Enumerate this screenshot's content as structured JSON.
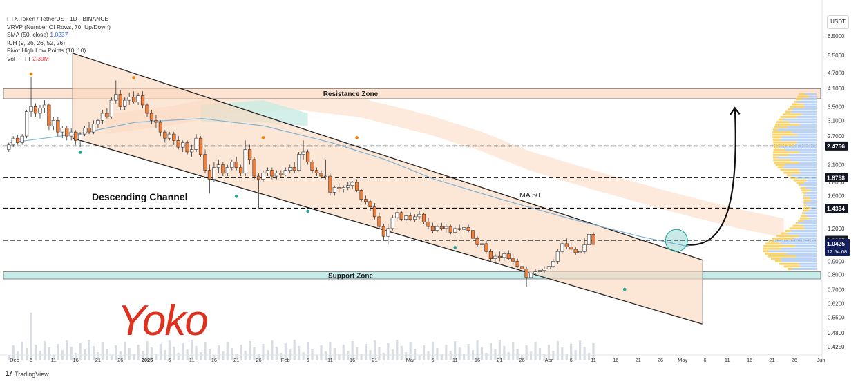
{
  "header": {
    "title": "FTX Token / TetherUS · 1D · BINANCE",
    "indicators": [
      {
        "label": "VRVP (Number Of Rows, 70, Up/Down)",
        "value": ""
      },
      {
        "label": "SMA (50, close)",
        "value": "1.0237",
        "value_color": "blue"
      },
      {
        "label": "ICH (9, 26, 26, 52, 26)",
        "value": ""
      },
      {
        "label": "Pivot High Low Points (10, 10)",
        "value": ""
      },
      {
        "label": "Vol · FTT",
        "value": "2.39M",
        "value_color": "red"
      }
    ],
    "currency": "USDT"
  },
  "footer": {
    "brand": "TradingView",
    "logo": "17"
  },
  "colors": {
    "bull": "#26a69a",
    "bear": "#ef5350",
    "candle_up": "#ffffff",
    "candle_down": "#f07f3c",
    "channel_fill": "#fbd9c0",
    "cloud": "#fde3d1",
    "cloud_green": "#c7ece3",
    "ma50": "#7fb3d5",
    "support_fill": "#c6ebe8",
    "resistance_fill": "#fde3d1",
    "signature": "#e0301e"
  },
  "chart_data": {
    "type": "candlestick",
    "symbol": "FTT/USDT",
    "timeframe": "1D",
    "exchange": "BINANCE",
    "y_scale": "log",
    "ylim": [
      0.4,
      8.0
    ],
    "y_ticks": [
      "7.3000",
      "6.5000",
      "5.5000",
      "4.7000",
      "4.1000",
      "3.5000",
      "3.1000",
      "2.7000",
      "2.4756",
      "2.1000",
      "1.8758",
      "1.8000",
      "1.6000",
      "1.4334",
      "1.2000",
      "1.0815",
      "1.0425",
      "0.9000",
      "0.8000",
      "0.7000",
      "0.6200",
      "0.5500",
      "0.4800",
      "0.4250"
    ],
    "x_ticks": [
      "Dec",
      "6",
      "11",
      "16",
      "21",
      "26",
      "2025",
      "6",
      "11",
      "16",
      "21",
      "26",
      "Feb",
      "6",
      "11",
      "16",
      "21",
      "Mar",
      "6",
      "11",
      "16",
      "21",
      "26",
      "Apr",
      "6",
      "11",
      "16",
      "21",
      "26",
      "May",
      "6",
      "11",
      "16",
      "21",
      "26",
      "Jun"
    ],
    "x_ticks_bold": [
      "2025"
    ],
    "horizontal_levels": [
      {
        "value": 2.4756,
        "label": "2.4756"
      },
      {
        "value": 1.8758,
        "label": "1.8758"
      },
      {
        "value": 1.4334,
        "label": "1.4334"
      },
      {
        "value": 1.0815,
        "label": "1.0815"
      }
    ],
    "current_price": {
      "value": "1.0425",
      "countdown": "12:54:08"
    },
    "zones": [
      {
        "name": "Resistance Zone",
        "low": 3.75,
        "high": 4.1
      },
      {
        "name": "Support Zone",
        "low": 0.77,
        "high": 0.82
      }
    ],
    "channel": {
      "name": "Descending Channel",
      "upper": {
        "from": {
          "x": "Dec 1",
          "y": 5.6
        },
        "to": {
          "x": "May 2",
          "y": 0.91
        }
      },
      "lower": {
        "from": {
          "x": "Dec 1",
          "y": 2.72
        },
        "to": {
          "x": "May 2",
          "y": 0.5
        }
      }
    },
    "annotations": [
      {
        "text": "Descending Channel"
      },
      {
        "text": "MA 50"
      },
      {
        "text": "Yoko",
        "kind": "signature"
      }
    ],
    "forecast_arrow": {
      "from": {
        "x": "May 1",
        "y": 1.04
      },
      "to": {
        "x": "May 13",
        "y": 3.5
      }
    },
    "pivot_highs": [
      {
        "x": "Dec 6",
        "y": 4.55
      },
      {
        "x": "Dec 29",
        "y": 4.4
      },
      {
        "x": "Jan 27",
        "y": 2.6
      },
      {
        "x": "Feb 17",
        "y": 2.6
      }
    ],
    "pivot_lows": [
      {
        "x": "Dec 17",
        "y": 2.4
      },
      {
        "x": "Jan 21",
        "y": 1.63
      },
      {
        "x": "Feb 6",
        "y": 1.43
      },
      {
        "x": "Mar 11",
        "y": 1.04
      },
      {
        "x": "Apr 18",
        "y": 0.72
      }
    ],
    "candles": [
      [
        2.4,
        2.55,
        2.35,
        2.5
      ],
      [
        2.5,
        2.7,
        2.45,
        2.65
      ],
      [
        2.65,
        2.72,
        2.5,
        2.55
      ],
      [
        2.55,
        2.75,
        2.5,
        2.7
      ],
      [
        2.7,
        3.4,
        2.65,
        3.35
      ],
      [
        3.35,
        4.55,
        3.2,
        3.5
      ],
      [
        3.5,
        3.6,
        3.2,
        3.3
      ],
      [
        3.3,
        3.55,
        3.15,
        3.45
      ],
      [
        3.45,
        3.7,
        3.3,
        3.55
      ],
      [
        3.55,
        3.6,
        2.85,
        2.95
      ],
      [
        2.95,
        3.2,
        2.85,
        3.1
      ],
      [
        3.1,
        3.2,
        2.7,
        2.8
      ],
      [
        2.8,
        2.95,
        2.65,
        2.9
      ],
      [
        2.9,
        2.95,
        2.6,
        2.7
      ],
      [
        2.7,
        2.9,
        2.6,
        2.8
      ],
      [
        2.8,
        2.85,
        2.5,
        2.6
      ],
      [
        2.6,
        2.8,
        2.45,
        2.75
      ],
      [
        2.75,
        2.95,
        2.7,
        2.9
      ],
      [
        2.9,
        3.05,
        2.75,
        2.8
      ],
      [
        2.8,
        3.1,
        2.75,
        3.0
      ],
      [
        3.0,
        3.15,
        2.9,
        3.1
      ],
      [
        3.1,
        3.4,
        3.0,
        3.3
      ],
      [
        3.3,
        3.45,
        3.15,
        3.2
      ],
      [
        3.2,
        3.8,
        3.15,
        3.7
      ],
      [
        3.7,
        4.4,
        3.6,
        3.9
      ],
      [
        3.9,
        4.05,
        3.4,
        3.5
      ],
      [
        3.5,
        3.8,
        3.4,
        3.7
      ],
      [
        3.7,
        3.95,
        3.55,
        3.8
      ],
      [
        3.8,
        4.0,
        3.6,
        3.65
      ],
      [
        3.65,
        3.95,
        3.55,
        3.85
      ],
      [
        3.85,
        4.0,
        3.45,
        3.55
      ],
      [
        3.55,
        3.6,
        3.2,
        3.3
      ],
      [
        3.3,
        3.4,
        3.0,
        3.1
      ],
      [
        3.1,
        3.25,
        2.9,
        3.05
      ],
      [
        3.05,
        3.1,
        2.7,
        2.8
      ],
      [
        2.8,
        2.85,
        2.55,
        2.65
      ],
      [
        2.65,
        2.8,
        2.6,
        2.75
      ],
      [
        2.75,
        2.8,
        2.5,
        2.6
      ],
      [
        2.6,
        2.7,
        2.4,
        2.45
      ],
      [
        2.45,
        2.6,
        2.35,
        2.55
      ],
      [
        2.55,
        2.6,
        2.3,
        2.35
      ],
      [
        2.35,
        2.5,
        2.25,
        2.4
      ],
      [
        2.4,
        2.75,
        2.35,
        2.65
      ],
      [
        2.65,
        2.7,
        2.25,
        2.3
      ],
      [
        2.3,
        2.4,
        1.95,
        2.0
      ],
      [
        2.0,
        2.1,
        1.63,
        1.85
      ],
      [
        1.85,
        2.15,
        1.8,
        2.05
      ],
      [
        2.05,
        2.2,
        1.95,
        2.1
      ],
      [
        2.1,
        2.15,
        1.9,
        1.95
      ],
      [
        1.95,
        2.1,
        1.9,
        2.05
      ],
      [
        2.05,
        2.2,
        2.0,
        2.15
      ],
      [
        2.15,
        2.25,
        2.0,
        2.05
      ],
      [
        2.05,
        2.1,
        1.9,
        1.95
      ],
      [
        1.95,
        2.6,
        1.9,
        2.4
      ],
      [
        2.4,
        2.5,
        2.1,
        2.2
      ],
      [
        2.2,
        2.25,
        1.85,
        1.9
      ],
      [
        1.9,
        1.95,
        1.43,
        1.85
      ],
      [
        1.85,
        2.0,
        1.8,
        1.95
      ],
      [
        1.95,
        2.05,
        1.9,
        2.0
      ],
      [
        2.0,
        2.05,
        1.85,
        1.9
      ],
      [
        1.9,
        2.0,
        1.85,
        1.95
      ],
      [
        1.95,
        2.0,
        1.88,
        1.92
      ],
      [
        1.92,
        2.05,
        1.9,
        2.0
      ],
      [
        2.0,
        2.1,
        1.95,
        2.05
      ],
      [
        2.05,
        2.15,
        1.95,
        2.0
      ],
      [
        2.0,
        2.35,
        1.98,
        2.3
      ],
      [
        2.3,
        2.6,
        2.2,
        2.35
      ],
      [
        2.35,
        2.4,
        2.1,
        2.15
      ],
      [
        2.15,
        2.2,
        1.95,
        2.0
      ],
      [
        2.0,
        2.05,
        1.9,
        1.95
      ],
      [
        1.95,
        2.0,
        1.86,
        1.9
      ],
      [
        1.9,
        2.2,
        1.85,
        1.9
      ],
      [
        1.9,
        1.95,
        1.6,
        1.65
      ],
      [
        1.65,
        1.75,
        1.6,
        1.72
      ],
      [
        1.72,
        1.78,
        1.65,
        1.7
      ],
      [
        1.7,
        1.75,
        1.65,
        1.72
      ],
      [
        1.72,
        1.8,
        1.68,
        1.75
      ],
      [
        1.75,
        1.82,
        1.7,
        1.8
      ],
      [
        1.8,
        1.85,
        1.65,
        1.68
      ],
      [
        1.68,
        1.7,
        1.52,
        1.55
      ],
      [
        1.55,
        1.6,
        1.48,
        1.52
      ],
      [
        1.52,
        1.55,
        1.4,
        1.45
      ],
      [
        1.45,
        1.5,
        1.3,
        1.33
      ],
      [
        1.33,
        1.38,
        1.2,
        1.22
      ],
      [
        1.22,
        1.25,
        1.08,
        1.12
      ],
      [
        1.12,
        1.25,
        1.04,
        1.2
      ],
      [
        1.2,
        1.35,
        1.18,
        1.32
      ],
      [
        1.32,
        1.42,
        1.28,
        1.38
      ],
      [
        1.38,
        1.4,
        1.28,
        1.3
      ],
      [
        1.3,
        1.36,
        1.26,
        1.34
      ],
      [
        1.34,
        1.38,
        1.28,
        1.3
      ],
      [
        1.3,
        1.36,
        1.27,
        1.33
      ],
      [
        1.33,
        1.4,
        1.3,
        1.36
      ],
      [
        1.36,
        1.38,
        1.25,
        1.27
      ],
      [
        1.27,
        1.32,
        1.2,
        1.22
      ],
      [
        1.22,
        1.26,
        1.15,
        1.18
      ],
      [
        1.18,
        1.24,
        1.16,
        1.22
      ],
      [
        1.22,
        1.26,
        1.18,
        1.2
      ],
      [
        1.2,
        1.25,
        1.16,
        1.22
      ],
      [
        1.22,
        1.24,
        1.14,
        1.16
      ],
      [
        1.16,
        1.22,
        1.14,
        1.2
      ],
      [
        1.2,
        1.24,
        1.17,
        1.19
      ],
      [
        1.19,
        1.23,
        1.15,
        1.21
      ],
      [
        1.21,
        1.24,
        1.16,
        1.18
      ],
      [
        1.18,
        1.2,
        1.08,
        1.1
      ],
      [
        1.1,
        1.12,
        1.02,
        1.04
      ],
      [
        1.04,
        1.08,
        1.0,
        1.05
      ],
      [
        1.05,
        1.08,
        0.96,
        0.98
      ],
      [
        0.98,
        1.0,
        0.9,
        0.92
      ],
      [
        0.92,
        0.96,
        0.88,
        0.94
      ],
      [
        0.94,
        0.98,
        0.9,
        0.93
      ],
      [
        0.93,
        0.98,
        0.9,
        0.96
      ],
      [
        0.96,
        0.99,
        0.91,
        0.92
      ],
      [
        0.92,
        0.96,
        0.88,
        0.9
      ],
      [
        0.9,
        0.92,
        0.85,
        0.86
      ],
      [
        0.86,
        0.88,
        0.82,
        0.84
      ],
      [
        0.84,
        0.86,
        0.72,
        0.78
      ],
      [
        0.78,
        0.83,
        0.76,
        0.81
      ],
      [
        0.81,
        0.84,
        0.79,
        0.82
      ],
      [
        0.82,
        0.85,
        0.8,
        0.83
      ],
      [
        0.83,
        0.86,
        0.81,
        0.84
      ],
      [
        0.84,
        0.87,
        0.82,
        0.86
      ],
      [
        0.86,
        0.92,
        0.85,
        0.9
      ],
      [
        0.9,
        1.0,
        0.88,
        0.98
      ],
      [
        0.98,
        1.08,
        0.96,
        1.05
      ],
      [
        1.05,
        1.1,
        1.0,
        1.02
      ],
      [
        1.02,
        1.06,
        0.98,
        1.0
      ],
      [
        1.0,
        1.02,
        0.95,
        0.97
      ],
      [
        0.97,
        1.0,
        0.94,
        0.98
      ],
      [
        0.98,
        1.1,
        0.96,
        1.04
      ],
      [
        1.04,
        1.25,
        1.02,
        1.14
      ],
      [
        1.14,
        1.16,
        1.04,
        1.0425
      ]
    ],
    "ma50": [
      {
        "x": "Dec 1",
        "y": 2.55
      },
      {
        "x": "Dec 16",
        "y": 2.75
      },
      {
        "x": "Dec 29",
        "y": 3.05
      },
      {
        "x": "Jan 13",
        "y": 3.15
      },
      {
        "x": "Jan 27",
        "y": 2.95
      },
      {
        "x": "Feb 11",
        "y": 2.55
      },
      {
        "x": "Feb 23",
        "y": 2.2
      },
      {
        "x": "Mar 6",
        "y": 1.85
      },
      {
        "x": "Mar 21",
        "y": 1.55
      },
      {
        "x": "Apr 6",
        "y": 1.3
      },
      {
        "x": "Apr 21",
        "y": 1.12
      },
      {
        "x": "May 2",
        "y": 1.0237
      }
    ],
    "volume_profile": "horizontal bars on right side, yellow (up) and blue (down)"
  }
}
